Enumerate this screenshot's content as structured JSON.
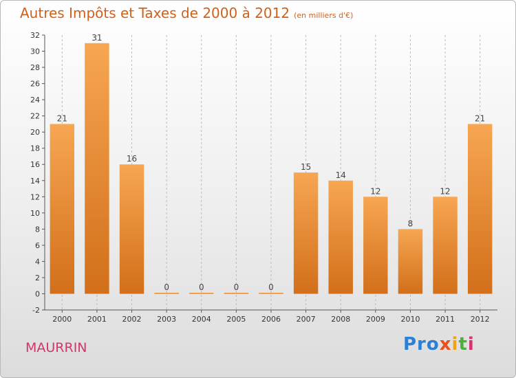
{
  "title": "Autres Impôts et Taxes de 2000 à 2012",
  "subtitle": "(en milliers d'€)",
  "commune": "MAURRIN",
  "logo": [
    "Pro",
    "x",
    "i",
    "t",
    "i"
  ],
  "colors": {
    "bar_top": "#f7a652",
    "bar_bottom": "#d26f1a",
    "title": "#d0601a",
    "commune": "#d6336c"
  },
  "chart_data": {
    "type": "bar",
    "title": "Autres Impôts et Taxes de 2000 à 2012",
    "subtitle": "(en milliers d'€)",
    "categories": [
      "2000",
      "2001",
      "2002",
      "2003",
      "2004",
      "2005",
      "2006",
      "2007",
      "2008",
      "2009",
      "2010",
      "2011",
      "2012"
    ],
    "values": [
      21,
      31,
      16,
      0,
      0,
      0,
      0,
      15,
      14,
      12,
      8,
      12,
      21
    ],
    "ylim": [
      -2,
      32
    ],
    "yticks": [
      -2,
      0,
      2,
      4,
      6,
      8,
      10,
      12,
      14,
      16,
      18,
      20,
      22,
      24,
      26,
      28,
      30,
      32
    ],
    "grid": "vertical-dashed",
    "xlabel": "",
    "ylabel": ""
  }
}
